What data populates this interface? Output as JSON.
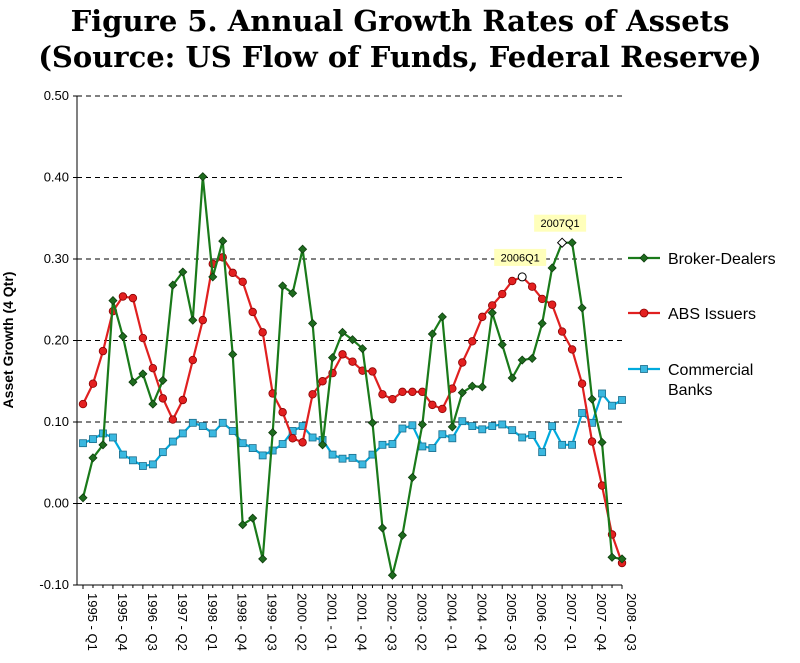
{
  "title": {
    "line1": "Figure 5.  Annual Growth Rates of Assets",
    "line2": "(Source:  US Flow of Funds, Federal Reserve)"
  },
  "chart_data": {
    "type": "line",
    "ylabel": "Asset Growth (4 Qtr)",
    "ylim": [
      -0.1,
      0.5
    ],
    "yticks": [
      "0.50",
      "0.40",
      "0.30",
      "0.20",
      "0.10",
      "0.00",
      "-0.10"
    ],
    "grid": "horizontal dashed at 0.30, 0.40, 0.50",
    "legend_position": "right",
    "x_tick_labels": [
      "1995 - Q1",
      "1995 - Q4",
      "1996 - Q3",
      "1997 - Q2",
      "1998 - Q1",
      "1998 - Q4",
      "1999 - Q3",
      "2000 - Q2",
      "2001 - Q1",
      "2001 - Q4",
      "2002 - Q3",
      "2003 - Q2",
      "2004 - Q1",
      "2004 - Q4",
      "2005 - Q3",
      "2006 - Q2",
      "2007 - Q1",
      "2007 - Q4",
      "2008 - Q3"
    ],
    "x_first": "1995 - Q1",
    "x_last": "2008 - Q3",
    "series": [
      {
        "name": "Broker-Dealers",
        "color": "#1a7a1a",
        "marker": "diamond",
        "values": [
          0.007,
          0.056,
          0.072,
          0.249,
          0.205,
          0.149,
          0.159,
          0.122,
          0.151,
          0.268,
          0.284,
          0.225,
          0.401,
          0.278,
          0.322,
          0.183,
          -0.026,
          -0.018,
          -0.068,
          0.087,
          0.267,
          0.258,
          0.312,
          0.221,
          0.072,
          0.179,
          0.21,
          0.201,
          0.19,
          0.099,
          -0.03,
          -0.088,
          -0.039,
          0.032,
          0.097,
          0.208,
          0.229,
          0.094,
          0.136,
          0.144,
          0.143,
          0.234,
          0.195,
          0.154,
          0.176,
          0.178,
          0.221,
          0.289,
          0.32,
          0.32,
          0.24,
          0.128,
          0.075,
          -0.066,
          -0.068
        ]
      },
      {
        "name": "ABS Issuers",
        "color": "#e02020",
        "marker": "circle",
        "values": [
          0.122,
          0.147,
          0.187,
          0.236,
          0.254,
          0.252,
          0.203,
          0.166,
          0.129,
          0.103,
          0.127,
          0.176,
          0.225,
          0.294,
          0.302,
          0.283,
          0.272,
          0.235,
          0.21,
          0.135,
          0.112,
          0.08,
          0.075,
          0.134,
          0.15,
          0.16,
          0.183,
          0.174,
          0.163,
          0.162,
          0.134,
          0.128,
          0.137,
          0.137,
          0.137,
          0.121,
          0.116,
          0.141,
          0.173,
          0.199,
          0.229,
          0.243,
          0.257,
          0.273,
          0.278,
          0.266,
          0.251,
          0.244,
          0.211,
          0.189,
          0.147,
          0.076,
          0.022,
          -0.038,
          -0.073
        ]
      },
      {
        "name": "Commercial Banks",
        "color": "#00aadd",
        "marker": "square",
        "values": [
          0.074,
          0.079,
          0.086,
          0.081,
          0.06,
          0.053,
          0.046,
          0.048,
          0.063,
          0.076,
          0.086,
          0.099,
          0.095,
          0.086,
          0.099,
          0.089,
          0.074,
          0.068,
          0.059,
          0.065,
          0.073,
          0.089,
          0.095,
          0.081,
          0.078,
          0.06,
          0.055,
          0.056,
          0.048,
          0.06,
          0.072,
          0.073,
          0.092,
          0.096,
          0.07,
          0.068,
          0.085,
          0.08,
          0.101,
          0.095,
          0.091,
          0.095,
          0.097,
          0.09,
          0.081,
          0.084,
          0.063,
          0.095,
          0.072,
          0.072,
          0.111,
          0.099,
          0.135,
          0.12,
          0.127
        ]
      }
    ],
    "annotations": [
      {
        "label": "2006Q1",
        "series": "ABS Issuers",
        "index": 44
      },
      {
        "label": "2007Q1",
        "series": "Broker-Dealers",
        "index": 48
      }
    ]
  }
}
